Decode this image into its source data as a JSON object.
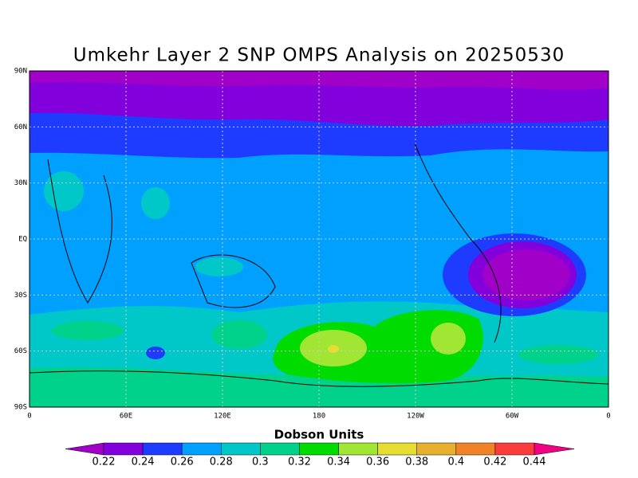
{
  "title": "Umkehr Layer 2 SNP OMPS Analysis on 20250530",
  "map": {
    "lat_labels": [
      "90N",
      "60N",
      "30N",
      "EQ",
      "30S",
      "60S",
      "90S"
    ],
    "lon_labels": [
      "0",
      "60E",
      "120E",
      "180",
      "120W",
      "60W",
      "0"
    ]
  },
  "colorbar": {
    "title": "Dobson Units",
    "labels": [
      "0.22",
      "0.24",
      "0.26",
      "0.28",
      "0.3",
      "0.32",
      "0.34",
      "0.36",
      "0.38",
      "0.4",
      "0.42",
      "0.44"
    ],
    "colors": [
      "#a000c8",
      "#8200dc",
      "#1e3cff",
      "#00a0ff",
      "#00c8c8",
      "#00d28c",
      "#00dc00",
      "#a0e632",
      "#e6dc32",
      "#e6af2d",
      "#f08228",
      "#fa3c3c",
      "#f00082"
    ]
  }
}
